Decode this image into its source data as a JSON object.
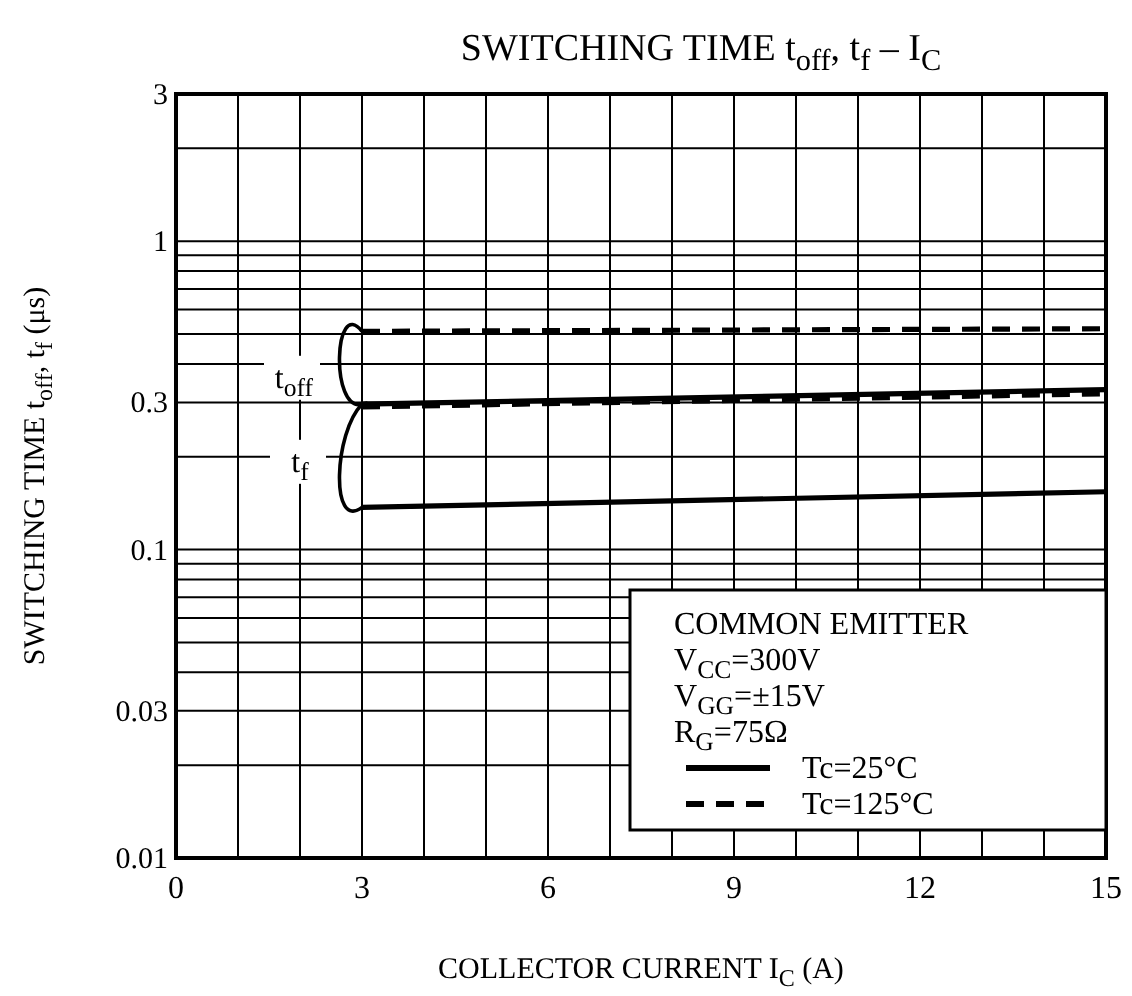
{
  "chart_data": {
    "type": "line",
    "title": "SWITCHING TIME  t$_{off}$, t$_{f}$ – I$_{C}$",
    "xlabel": "COLLECTOR CURRENT  I$_{C}$  (A)",
    "ylabel": "SWITCHING TIME  t$_{off}$, t$_{f}$  (μs)",
    "log": "y",
    "grid": true,
    "legend": "bottom right",
    "marker": "none",
    "xlim": [
      0,
      15
    ],
    "ylim": [
      0.01,
      3
    ],
    "xticks": [
      0,
      {
        "value": 1,
        "label": null
      },
      {
        "value": 2,
        "label": null
      },
      3,
      {
        "value": 4,
        "label": null
      },
      {
        "value": 5,
        "label": null
      },
      6,
      {
        "value": 7,
        "label": null
      },
      {
        "value": 8,
        "label": null
      },
      9,
      {
        "value": 10,
        "label": null
      },
      {
        "value": 11,
        "label": null
      },
      12,
      {
        "value": 13,
        "label": null
      },
      {
        "value": 14,
        "label": null
      },
      15
    ],
    "yticks": [
      0.01,
      {
        "value": 0.02,
        "label": null
      },
      0.03,
      {
        "value": 0.04,
        "label": null
      },
      {
        "value": 0.05,
        "label": null
      },
      {
        "value": 0.06,
        "label": null
      },
      {
        "value": 0.07,
        "label": null
      },
      {
        "value": 0.08,
        "label": null
      },
      {
        "value": 0.09,
        "label": null
      },
      0.1,
      {
        "value": 0.2,
        "label": null
      },
      0.3,
      {
        "value": 0.4,
        "label": null
      },
      {
        "value": 0.5,
        "label": null
      },
      {
        "value": 0.6,
        "label": null
      },
      {
        "value": 0.7,
        "label": null
      },
      {
        "value": 0.8,
        "label": null
      },
      {
        "value": 0.9,
        "label": null
      },
      1,
      {
        "value": 2,
        "label": null
      },
      3
    ],
    "x": [
      3,
      15
    ],
    "series": [
      {
        "name": "Tc=25°C",
        "color": "#000000",
        "line_style": "solid",
        "values": [
          0.296,
          0.33
        ]
      },
      {
        "name": "Tc=125°C",
        "color": "#000000",
        "line_style": "dashed",
        "values": [
          0.51,
          0.52
        ]
      },
      {
        "color": "#000000",
        "line_style": "solid",
        "values": [
          0.137,
          0.154
        ]
      },
      {
        "color": "#000000",
        "line_style": "dashed",
        "values": [
          0.29,
          0.32
        ]
      }
    ],
    "annotations": [
      "t$_{off}$",
      "t$_{f}$",
      "COMMON EMITTER",
      "V$_{CC}$=300V",
      "V$_{GG}$=±15V",
      "R$_{G}$=75Ω"
    ]
  }
}
